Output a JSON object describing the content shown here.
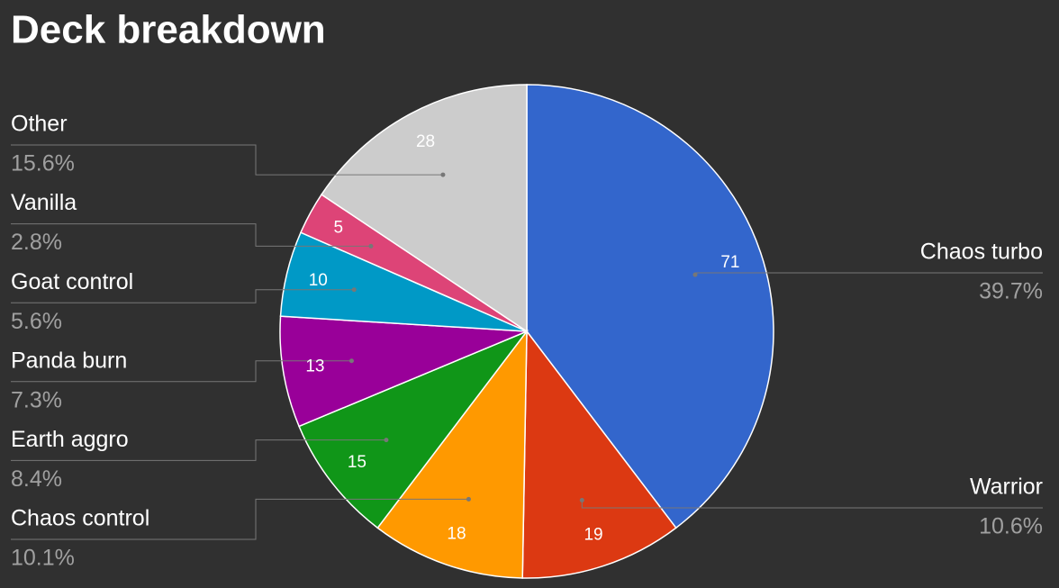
{
  "chart_data": {
    "type": "pie",
    "title": "Deck breakdown",
    "categories": [
      "Chaos turbo",
      "Warrior",
      "Chaos control",
      "Earth aggro",
      "Panda burn",
      "Goat control",
      "Vanilla",
      "Other"
    ],
    "values": [
      71,
      19,
      18,
      15,
      13,
      10,
      5,
      28
    ],
    "percent_labels": [
      "39.7%",
      "10.6%",
      "10.1%",
      "8.4%",
      "7.3%",
      "5.6%",
      "2.8%",
      "15.6%"
    ],
    "colors": [
      "#3366cc",
      "#dc3912",
      "#ff9900",
      "#109618",
      "#990099",
      "#0099c6",
      "#dd4477",
      "#cccccc"
    ]
  }
}
